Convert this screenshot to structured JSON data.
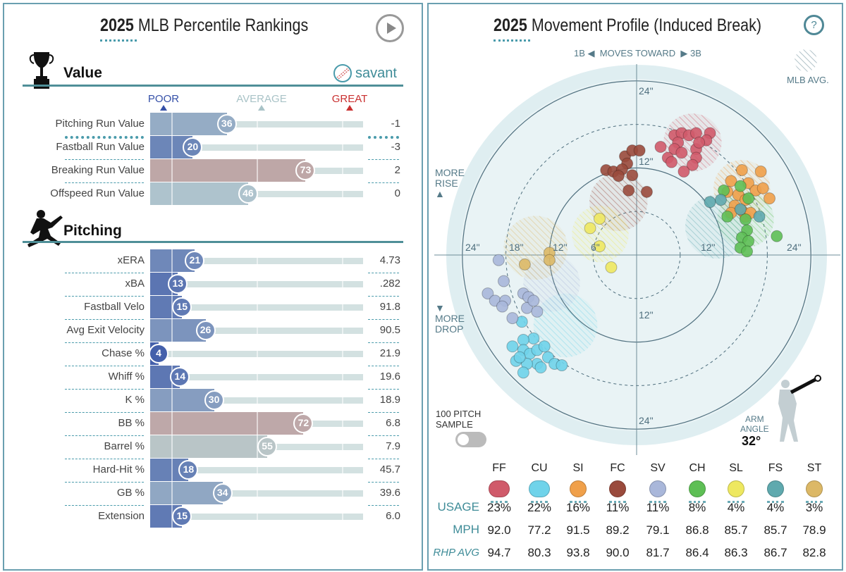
{
  "left": {
    "title_year": "2025",
    "title_rest": "MLB Percentile Rankings",
    "value_section": "Value",
    "pitching_section": "Pitching",
    "brand": "savant",
    "scale": {
      "poor": "POOR",
      "average": "AVERAGE",
      "great": "GREAT"
    },
    "colors": {
      "poor": "#3a56a8",
      "average": "#b8cdd0",
      "great": "#d0352f"
    },
    "value_rows": [
      {
        "label": "Pitching Run Value",
        "percentile": 36,
        "value": "-1"
      },
      {
        "label": "Fastball Run Value",
        "percentile": 20,
        "value": "-3"
      },
      {
        "label": "Breaking Run Value",
        "percentile": 73,
        "value": "2"
      },
      {
        "label": "Offspeed Run Value",
        "percentile": 46,
        "value": "0"
      }
    ],
    "pitching_rows": [
      {
        "label": "xERA",
        "percentile": 21,
        "value": "4.73"
      },
      {
        "label": "xBA",
        "percentile": 13,
        "value": ".282"
      },
      {
        "label": "Fastball Velo",
        "percentile": 15,
        "value": "91.8"
      },
      {
        "label": "Avg Exit Velocity",
        "percentile": 26,
        "value": "90.5"
      },
      {
        "label": "Chase %",
        "percentile": 4,
        "value": "21.9"
      },
      {
        "label": "Whiff %",
        "percentile": 14,
        "value": "19.6"
      },
      {
        "label": "K %",
        "percentile": 30,
        "value": "18.9"
      },
      {
        "label": "BB %",
        "percentile": 72,
        "value": "6.8"
      },
      {
        "label": "Barrel %",
        "percentile": 55,
        "value": "7.9"
      },
      {
        "label": "Hard-Hit %",
        "percentile": 18,
        "value": "45.7"
      },
      {
        "label": "GB %",
        "percentile": 34,
        "value": "39.6"
      },
      {
        "label": "Extension",
        "percentile": 15,
        "value": "6.0"
      }
    ]
  },
  "right": {
    "title_year": "2025",
    "title_rest": "Movement Profile (Induced Break)",
    "help": "?",
    "moves": {
      "left": "1B",
      "middle": "MOVES TOWARD",
      "right": "3B"
    },
    "mlb_avg": "MLB AVG.",
    "more_rise": [
      "MORE",
      "RISE"
    ],
    "more_drop": [
      "MORE",
      "DROP"
    ],
    "sample": [
      "100 PITCH",
      "SAMPLE"
    ],
    "sample_toggle_on": false,
    "arm_angle_label": [
      "ARM",
      "ANGLE"
    ],
    "arm_angle": "32°",
    "axis_labels": {
      "h_left": [
        "24\"",
        "18\"",
        "12\"",
        "6\""
      ],
      "h_right": [
        "12\"",
        "24\""
      ],
      "v_top": [
        "24\"",
        "12\""
      ],
      "v_bottom": [
        "12\"",
        "24\""
      ]
    },
    "row_labels": {
      "usage": "USAGE",
      "mph": "MPH",
      "rhp": "RHP AVG"
    },
    "pitches": [
      {
        "code": "FF",
        "color": "#d05a6a",
        "usage": "23%",
        "mph": "92.0",
        "rhp_avg": "94.7",
        "avg": [
          7.7,
          15.5,
          4
        ],
        "points": [
          [
            3.3,
            14.9
          ],
          [
            5.2,
            16.5
          ],
          [
            6.2,
            16.8
          ],
          [
            7.2,
            16.5
          ],
          [
            8.2,
            16.8
          ],
          [
            10.1,
            16.8
          ],
          [
            9.6,
            15.8
          ],
          [
            5.7,
            15.5
          ],
          [
            5.2,
            14.6
          ],
          [
            6.2,
            14.1
          ],
          [
            8.2,
            14.6
          ],
          [
            8.2,
            13.4
          ],
          [
            7.7,
            12.4
          ],
          [
            6.5,
            11.5
          ],
          [
            4.3,
            13.4
          ],
          [
            4.8,
            12.8
          ],
          [
            8.6,
            15.5
          ]
        ]
      },
      {
        "code": "CU",
        "color": "#6fd3ea",
        "usage": "22%",
        "mph": "77.2",
        "rhp_avg": "80.3",
        "avg": [
          -9.8,
          -9.7,
          4.4
        ],
        "points": [
          [
            -15.8,
            -9.2
          ],
          [
            -14.2,
            -11.5
          ],
          [
            -15.6,
            -11.7
          ],
          [
            -17.1,
            -12.6
          ],
          [
            -15.6,
            -13.1
          ],
          [
            -14.7,
            -13.6
          ],
          [
            -13.7,
            -13.1
          ],
          [
            -12.7,
            -12.6
          ],
          [
            -12.2,
            -14.1
          ],
          [
            -13.7,
            -15.0
          ],
          [
            -15.1,
            -15.0
          ],
          [
            -16.6,
            -14.6
          ],
          [
            -15.6,
            -16.2
          ],
          [
            -11.3,
            -15.0
          ],
          [
            -10.3,
            -15.2
          ],
          [
            -13.2,
            -15.5
          ],
          [
            -16.1,
            -14.1
          ]
        ]
      },
      {
        "code": "SI",
        "color": "#f0a04a",
        "usage": "16%",
        "mph": "91.5",
        "rhp_avg": "93.8",
        "avg": [
          14.5,
          9.2,
          3.9
        ],
        "points": [
          [
            14.5,
            11.7
          ],
          [
            17.1,
            11.5
          ],
          [
            13.0,
            10.2
          ],
          [
            15.4,
            9.9
          ],
          [
            16.4,
            8.9
          ],
          [
            12.5,
            8.7
          ],
          [
            14.0,
            8.3
          ],
          [
            15.0,
            7.6
          ],
          [
            17.4,
            9.2
          ],
          [
            18.3,
            7.8
          ],
          [
            13.5,
            6.8
          ],
          [
            14.5,
            6.1
          ],
          [
            15.0,
            5.3
          ],
          [
            15.7,
            5.8
          ],
          [
            13.0,
            5.8
          ]
        ]
      },
      {
        "code": "FC",
        "color": "#9a4a3c",
        "usage": "11%",
        "mph": "89.2",
        "rhp_avg": "90.0",
        "avg": [
          -2.5,
          7.3,
          4
        ],
        "points": [
          [
            -4.2,
            11.7
          ],
          [
            -3.2,
            11.5
          ],
          [
            -1.6,
            13.6
          ],
          [
            -0.6,
            14.4
          ],
          [
            0.4,
            14.4
          ],
          [
            -1.3,
            12.6
          ],
          [
            -2.0,
            11.8
          ],
          [
            -2.5,
            10.9
          ],
          [
            -0.6,
            11.0
          ],
          [
            -1.1,
            8.9
          ],
          [
            1.4,
            8.7
          ]
        ]
      },
      {
        "code": "SV",
        "color": "#a9b7da",
        "usage": "11%",
        "mph": "79.1",
        "rhp_avg": "81.7",
        "avg": [
          -11.7,
          -3.9,
          3.9
        ],
        "points": [
          [
            -19.0,
            -0.7
          ],
          [
            -18.3,
            -3.6
          ],
          [
            -20.5,
            -5.3
          ],
          [
            -19.5,
            -6.3
          ],
          [
            -18.1,
            -6.3
          ],
          [
            -18.5,
            -7.1
          ],
          [
            -15.6,
            -5.3
          ],
          [
            -14.9,
            -5.8
          ],
          [
            -15.1,
            -7.3
          ],
          [
            -14.2,
            -6.3
          ],
          [
            -13.7,
            -7.8
          ],
          [
            -17.1,
            -8.7
          ]
        ]
      },
      {
        "code": "CH",
        "color": "#5ebf55",
        "usage": "8%",
        "mph": "86.8",
        "rhp_avg": "86.4",
        "avg": [
          15.0,
          4.9,
          3.9
        ],
        "points": [
          [
            12.0,
            8.9
          ],
          [
            14.3,
            9.5
          ],
          [
            15.4,
            7.8
          ],
          [
            15.0,
            4.9
          ],
          [
            15.2,
            3.4
          ],
          [
            14.5,
            2.4
          ],
          [
            15.4,
            1.9
          ],
          [
            14.3,
            1.0
          ],
          [
            15.2,
            0.5
          ],
          [
            19.3,
            2.6
          ],
          [
            12.5,
            5.3
          ]
        ]
      },
      {
        "code": "SL",
        "color": "#eee860",
        "usage": "4%",
        "mph": "85.7",
        "rhp_avg": "86.3",
        "avg": [
          -5.0,
          2.9,
          3.9
        ],
        "points": [
          [
            -5.1,
            5.0
          ],
          [
            -6.4,
            3.7
          ],
          [
            -5.1,
            1.2
          ],
          [
            -3.5,
            -1.7
          ]
        ]
      },
      {
        "code": "FS",
        "color": "#5fa9ae",
        "usage": "4%",
        "mph": "85.7",
        "rhp_avg": "86.7",
        "avg": [
          11.1,
          3.9,
          4.4
        ],
        "points": [
          [
            10.1,
            7.3
          ],
          [
            11.6,
            7.6
          ],
          [
            14.3,
            6.3
          ],
          [
            16.9,
            5.3
          ]
        ]
      },
      {
        "code": "ST",
        "color": "#dcb866",
        "usage": "3%",
        "mph": "78.9",
        "rhp_avg": "82.8",
        "avg": [
          -13.9,
          1.0,
          4.4
        ],
        "points": [
          [
            -12.0,
            0.3
          ],
          [
            -12.0,
            -0.7
          ],
          [
            -15.4,
            -1.3
          ]
        ]
      }
    ]
  }
}
